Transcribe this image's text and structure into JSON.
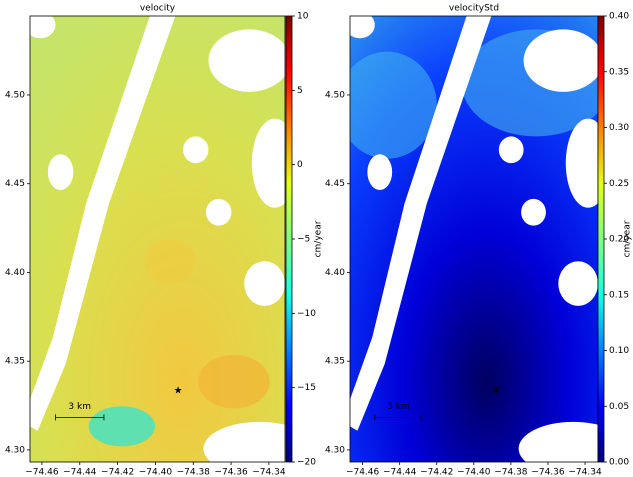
{
  "chart_data": [
    {
      "type": "map",
      "title": "velocity",
      "xlim": [
        -74.4663,
        -74.3315
      ],
      "ylim": [
        4.2932,
        4.5445
      ],
      "xticks": [
        {
          "value": -74.46,
          "label": "−74.46"
        },
        {
          "value": -74.44,
          "label": "−74.44"
        },
        {
          "value": -74.42,
          "label": "−74.42"
        },
        {
          "value": -74.4,
          "label": "−74.40"
        },
        {
          "value": -74.38,
          "label": "−74.38"
        },
        {
          "value": -74.36,
          "label": "−74.36"
        },
        {
          "value": -74.34,
          "label": "−74.34"
        }
      ],
      "yticks": [
        {
          "value": 4.3,
          "label": "4.30"
        },
        {
          "value": 4.35,
          "label": "4.35"
        },
        {
          "value": 4.4,
          "label": "4.40"
        },
        {
          "value": 4.45,
          "label": "4.45"
        },
        {
          "value": 4.5,
          "label": "4.50"
        }
      ],
      "colorbar": {
        "label": "cm/year",
        "lim": [
          -20,
          10
        ],
        "ticks": [
          {
            "value": -20,
            "label": "−20"
          },
          {
            "value": -15,
            "label": "−15"
          },
          {
            "value": -10,
            "label": "−10"
          },
          {
            "value": -5,
            "label": "−5"
          },
          0,
          5,
          10
        ],
        "colors": [
          "#00007f",
          "#0000ff",
          "#007fff",
          "#19ffe5",
          "#7fff7f",
          "#e5ff19",
          "#ff7f00",
          "#ff0000",
          "#7f0000"
        ]
      },
      "scalebar_label": "3 km",
      "reference_point": [
        -74.388,
        4.334
      ]
    },
    {
      "type": "map",
      "title": "velocityStd",
      "xlim": [
        -74.4668,
        -74.333
      ],
      "ylim": [
        4.2932,
        4.5445
      ],
      "xticks": [
        {
          "value": -74.46,
          "label": "−74.46"
        },
        {
          "value": -74.44,
          "label": "−74.44"
        },
        {
          "value": -74.42,
          "label": "−74.42"
        },
        {
          "value": -74.4,
          "label": "−74.40"
        },
        {
          "value": -74.38,
          "label": "−74.38"
        },
        {
          "value": -74.36,
          "label": "−74.36"
        },
        {
          "value": -74.34,
          "label": "−74.34"
        }
      ],
      "yticks": [
        {
          "value": 4.3,
          "label": "4.30"
        },
        {
          "value": 4.35,
          "label": "4.35"
        },
        {
          "value": 4.4,
          "label": "4.40"
        },
        {
          "value": 4.45,
          "label": "4.45"
        },
        {
          "value": 4.5,
          "label": "4.50"
        }
      ],
      "colorbar": {
        "label": "cm/year",
        "lim": [
          0,
          0.4
        ],
        "ticks": [
          {
            "value": 0,
            "label": "0.00"
          },
          {
            "value": 0.05,
            "label": "0.05"
          },
          {
            "value": 0.1,
            "label": "0.10"
          },
          {
            "value": 0.15,
            "label": "0.15"
          },
          {
            "value": 0.2,
            "label": "0.20"
          },
          {
            "value": 0.25,
            "label": "0.25"
          },
          {
            "value": 0.3,
            "label": "0.30"
          },
          {
            "value": 0.35,
            "label": "0.35"
          },
          {
            "value": 0.4,
            "label": "0.40"
          }
        ],
        "colors": [
          "#00007f",
          "#0000ff",
          "#007fff",
          "#19ffe5",
          "#7fff7f",
          "#e5ff19",
          "#ff7f00",
          "#ff0000",
          "#7f0000"
        ]
      },
      "scalebar_label": "3 km",
      "reference_point": [
        -74.388,
        4.334
      ]
    }
  ]
}
